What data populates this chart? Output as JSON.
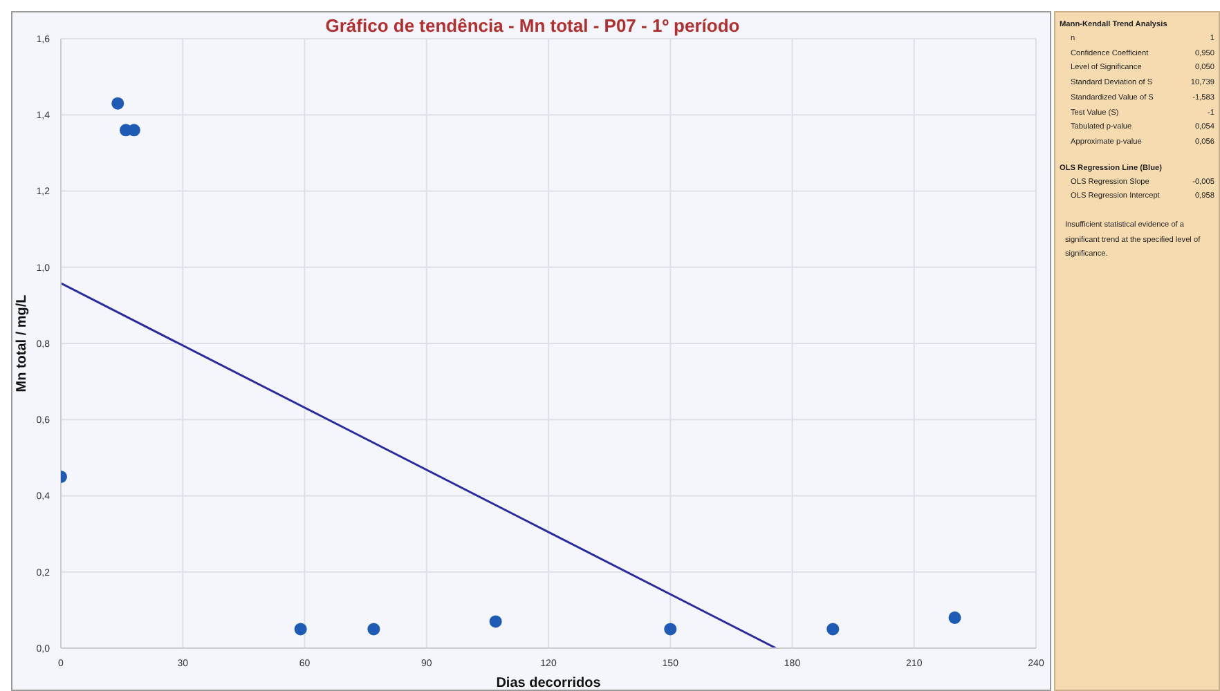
{
  "chart_data": {
    "type": "scatter",
    "title": "Gráfico de tendência - Mn total - P07 - 1º período",
    "xlabel": "Dias decorridos",
    "ylabel": "Mn total / mg/L",
    "series": [
      {
        "marker": "circle",
        "color": "#1f5bb5",
        "x": [
          0,
          14,
          16,
          18,
          59,
          77,
          107,
          150,
          190,
          220
        ],
        "values": [
          0.45,
          1.43,
          1.36,
          1.36,
          0.05,
          0.05,
          0.07,
          0.05,
          0.05,
          0.08
        ]
      },
      {
        "type": "line",
        "marker": "none",
        "color": "#2b2ba0",
        "x": [
          0,
          176
        ],
        "values": [
          0.958,
          0
        ]
      }
    ],
    "xlim": [
      0,
      240
    ],
    "xticks": [
      0,
      30,
      60,
      90,
      120,
      150,
      180,
      210,
      240
    ],
    "ylim": [
      0,
      1.6
    ],
    "yticks": [
      {
        "value": 0,
        "label": "0,0"
      },
      {
        "value": 0.2,
        "label": "0,2"
      },
      {
        "value": 0.4,
        "label": "0,4"
      },
      {
        "value": 0.6,
        "label": "0,6"
      },
      {
        "value": 0.8,
        "label": "0,8"
      },
      {
        "value": 1.0,
        "label": "1,0"
      },
      {
        "value": 1.2,
        "label": "1,2"
      },
      {
        "value": 1.4,
        "label": "1,4"
      },
      {
        "value": 1.6,
        "label": "1,6"
      }
    ],
    "grid": true,
    "line_style": "solid",
    "annotations": [
      "Mann-Kendall Trend Analysis",
      "n",
      "1",
      "Confidence Coefficient",
      "0,950",
      "Level of Significance",
      "0,050",
      "Standard Deviation of S",
      "10,739",
      "Standardized Value of S",
      "-1,583",
      "Test Value (S)",
      "-1",
      "Tabulated p-value",
      "0,054",
      "Approximate p-value",
      "0,056",
      "OLS Regression Line (Blue)",
      "OLS Regression Slope",
      "-0,005",
      "OLS Regression Intercept",
      "0,958",
      "Insufficient statistical evidence of a significant trend at the specified level of significance."
    ]
  }
}
